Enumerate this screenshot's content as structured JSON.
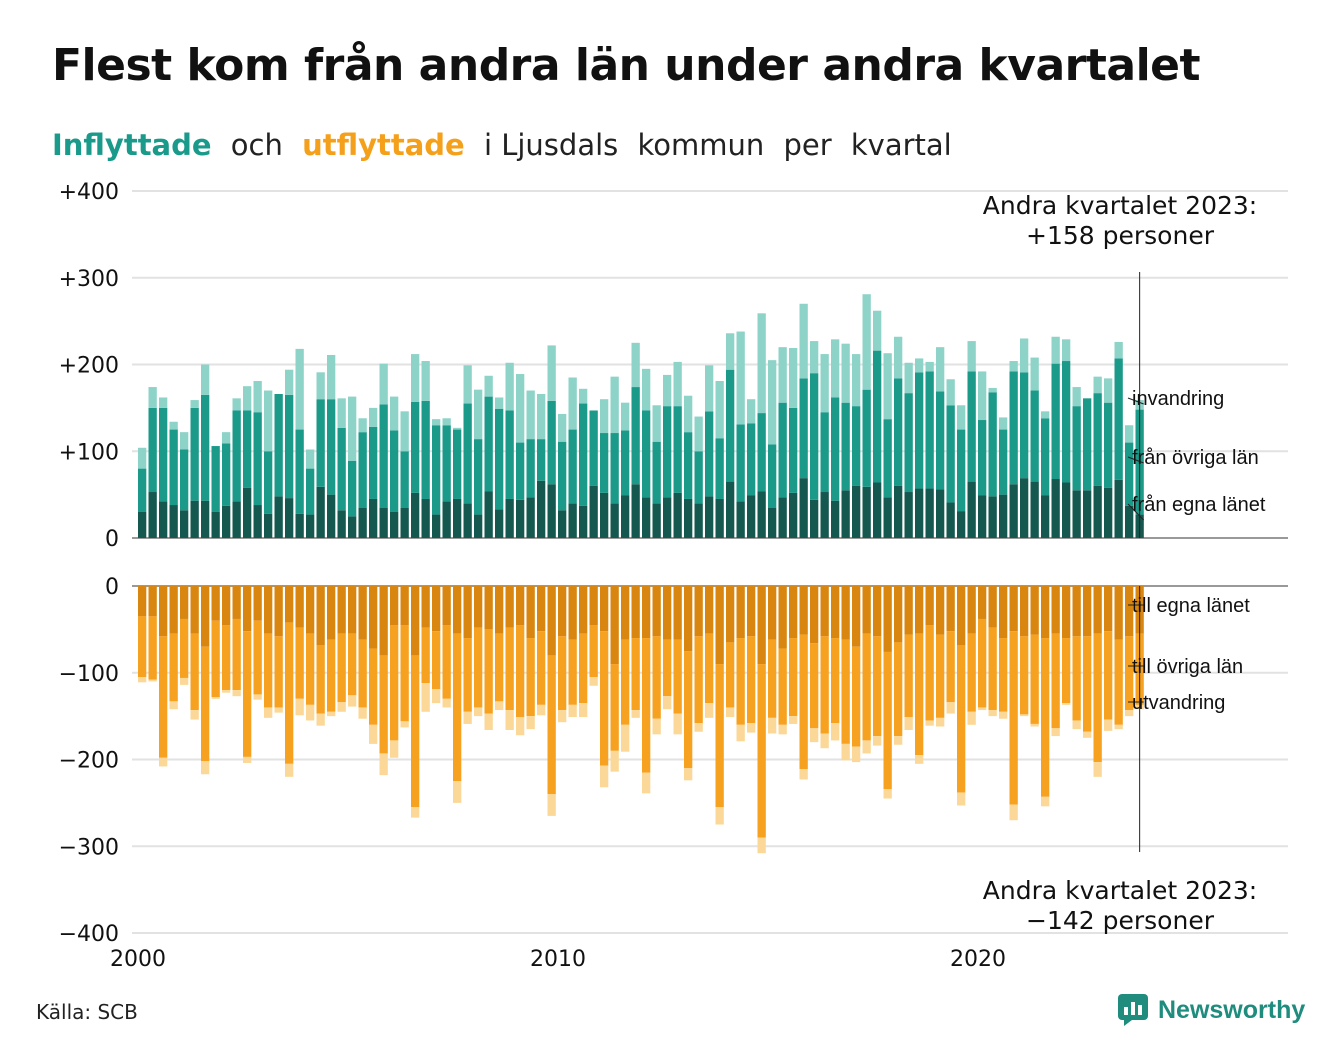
{
  "header": {
    "title": "Flest kom från andra län under andra kvartalet",
    "subtitle_parts": [
      "Inflyttade",
      "och",
      "utflyttade",
      "i Ljusdals",
      "kommun",
      "per",
      "kvartal"
    ]
  },
  "footer": {
    "source": "Källa: SCB",
    "brand": "Newsworthy"
  },
  "colors": {
    "in_egna": "#14584f",
    "in_ovriga": "#1b9a8a",
    "in_invandring": "#8dd3c8",
    "ut_egna": "#d88610",
    "ut_ovriga": "#f6a11f",
    "ut_utvandring": "#fbd898",
    "title_in": "#1a9a8a",
    "title_out": "#f5a01b",
    "grid": "#e2e2e2"
  },
  "chart_data": {
    "type": "bar",
    "stacked": true,
    "x_unit": "quarter",
    "x_start": "2000 Q1",
    "x_end": "2023 Q2",
    "x_ticks": [
      "2000",
      "2010",
      "2020"
    ],
    "top_panel": {
      "y_ticks": [
        "+400",
        "+300",
        "+200",
        "+100",
        "0"
      ],
      "ylim": [
        0,
        400
      ],
      "series_labels": [
        "från egna länet",
        "från övriga län",
        "invandring"
      ],
      "series": [
        {
          "name": "från egna länet",
          "values": [
            30,
            53,
            42,
            38,
            32,
            43,
            43,
            30,
            37,
            42,
            58,
            38,
            28,
            48,
            46,
            28,
            27,
            59,
            50,
            32,
            25,
            35,
            45,
            35,
            30,
            35,
            52,
            45,
            27,
            42,
            45,
            40,
            27,
            54,
            33,
            45,
            44,
            47,
            66,
            62,
            32,
            40,
            37,
            60,
            52,
            40,
            49,
            62,
            47,
            40,
            47,
            52,
            45,
            40,
            48,
            45,
            65,
            42,
            49,
            54,
            35,
            47,
            52,
            69,
            44,
            53,
            43,
            55,
            60,
            59,
            64,
            47,
            60,
            53,
            57,
            57,
            56,
            41,
            31,
            65,
            49,
            48,
            50,
            62,
            69,
            65,
            49,
            68,
            64,
            55,
            55,
            60,
            58,
            67,
            37,
            27
          ]
        },
        {
          "name": "från övriga län",
          "values": [
            50,
            97,
            108,
            87,
            70,
            107,
            122,
            76,
            72,
            105,
            89,
            107,
            72,
            118,
            119,
            97,
            53,
            101,
            110,
            95,
            64,
            87,
            83,
            119,
            94,
            65,
            105,
            113,
            103,
            88,
            80,
            115,
            87,
            109,
            116,
            102,
            66,
            67,
            48,
            96,
            79,
            85,
            118,
            87,
            69,
            81,
            75,
            112,
            100,
            71,
            105,
            100,
            77,
            60,
            98,
            70,
            129,
            89,
            83,
            90,
            73,
            109,
            98,
            115,
            146,
            92,
            119,
            101,
            92,
            112,
            152,
            90,
            124,
            114,
            134,
            135,
            113,
            112,
            94,
            127,
            87,
            120,
            75,
            130,
            122,
            105,
            89,
            133,
            140,
            97,
            106,
            107,
            98,
            140,
            73,
            121
          ]
        },
        {
          "name": "invandring",
          "values": [
            24,
            24,
            12,
            9,
            20,
            9,
            35,
            0,
            13,
            14,
            28,
            36,
            70,
            0,
            29,
            93,
            22,
            31,
            51,
            34,
            74,
            16,
            22,
            47,
            39,
            46,
            55,
            46,
            7,
            8,
            2,
            44,
            57,
            24,
            13,
            55,
            79,
            56,
            52,
            64,
            32,
            60,
            17,
            0,
            39,
            65,
            32,
            51,
            48,
            42,
            36,
            51,
            42,
            40,
            53,
            66,
            42,
            107,
            28,
            115,
            97,
            64,
            69,
            86,
            37,
            67,
            67,
            68,
            60,
            110,
            46,
            76,
            48,
            35,
            16,
            11,
            51,
            30,
            28,
            35,
            56,
            5,
            14,
            12,
            39,
            38,
            8,
            31,
            25,
            22,
            0,
            19,
            28,
            19,
            20,
            11
          ]
        }
      ],
      "annotation": [
        "Andra kvartalet 2023:",
        "+158 personer"
      ]
    },
    "bottom_panel": {
      "y_ticks": [
        "0",
        "−100",
        "−200",
        "−300",
        "−400"
      ],
      "ylim": [
        -400,
        0
      ],
      "series_labels": [
        "till egna länet",
        "till övriga län",
        "utvandring"
      ],
      "series": [
        {
          "name": "till egna länet",
          "values": [
            -35,
            -35,
            -58,
            -55,
            -38,
            -55,
            -70,
            -40,
            -45,
            -38,
            -52,
            -40,
            -55,
            -58,
            -42,
            -48,
            -55,
            -68,
            -62,
            -55,
            -55,
            -62,
            -72,
            -80,
            -45,
            -45,
            -80,
            -48,
            -52,
            -45,
            -55,
            -60,
            -48,
            -50,
            -55,
            -48,
            -45,
            -60,
            -52,
            -80,
            -58,
            -62,
            -55,
            -45,
            -52,
            -90,
            -62,
            -60,
            -60,
            -58,
            -62,
            -62,
            -75,
            -58,
            -55,
            -90,
            -65,
            -60,
            -58,
            -90,
            -62,
            -72,
            -60,
            -56,
            -66,
            -58,
            -60,
            -62,
            -70,
            -55,
            -58,
            -76,
            -65,
            -56,
            -55,
            -45,
            -56,
            -52,
            -68,
            -55,
            -38,
            -48,
            -60,
            -52,
            -58,
            -56,
            -60,
            -55,
            -60,
            -58,
            -58,
            -55,
            -52,
            -62,
            -58,
            -55
          ]
        },
        {
          "name": "till övriga län",
          "values": [
            -70,
            -73,
            -140,
            -78,
            -68,
            -88,
            -132,
            -88,
            -75,
            -82,
            -145,
            -85,
            -85,
            -82,
            -163,
            -82,
            -82,
            -79,
            -83,
            -79,
            -71,
            -78,
            -88,
            -113,
            -133,
            -111,
            -175,
            -64,
            -67,
            -85,
            -170,
            -85,
            -92,
            -97,
            -78,
            -95,
            -106,
            -90,
            -85,
            -160,
            -85,
            -75,
            -80,
            -60,
            -155,
            -100,
            -98,
            -83,
            -155,
            -95,
            -65,
            -85,
            -135,
            -100,
            -80,
            -165,
            -75,
            -100,
            -100,
            -200,
            -90,
            -88,
            -90,
            -155,
            -98,
            -112,
            -98,
            -120,
            -115,
            -123,
            -115,
            -158,
            -108,
            -95,
            -140,
            -110,
            -96,
            -82,
            -170,
            -90,
            -102,
            -95,
            -85,
            -200,
            -90,
            -103,
            -183,
            -109,
            -75,
            -97,
            -110,
            -148,
            -102,
            -98,
            -85,
            -82
          ]
        },
        {
          "name": "utvandring",
          "values": [
            -6,
            -2,
            -10,
            -9,
            -8,
            -11,
            -15,
            -2,
            -3,
            -7,
            -7,
            -6,
            -12,
            -6,
            -15,
            -19,
            -18,
            -14,
            -5,
            -11,
            -13,
            -13,
            -22,
            -25,
            -20,
            -7,
            -12,
            -33,
            -16,
            -10,
            -25,
            -14,
            -10,
            -19,
            -10,
            -23,
            -21,
            -15,
            -12,
            -25,
            -14,
            -14,
            -16,
            -10,
            -25,
            -24,
            -31,
            -9,
            -24,
            -18,
            -15,
            -24,
            -14,
            -10,
            -17,
            -20,
            -11,
            -19,
            -11,
            -18,
            -18,
            -11,
            -9,
            -12,
            -16,
            -17,
            -20,
            -19,
            -18,
            -15,
            -11,
            -11,
            -10,
            -15,
            -10,
            -6,
            -10,
            -13,
            -15,
            -15,
            -3,
            -7,
            -8,
            -18,
            -2,
            -3,
            -11,
            -9,
            -2,
            -10,
            -7,
            -17,
            -13,
            -5,
            -7,
            -5
          ]
        }
      ],
      "annotation": [
        "Andra kvartalet 2023:",
        "−142 personer"
      ]
    }
  }
}
